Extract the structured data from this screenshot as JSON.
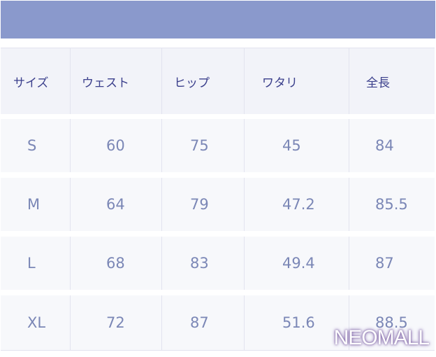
{
  "table": {
    "headers": [
      "サイズ",
      "ウェスト",
      "ヒップ",
      "ワタリ",
      "全長"
    ],
    "rows": [
      [
        "S",
        "60",
        "75",
        "45",
        "84"
      ],
      [
        "M",
        "64",
        "79",
        "47.2",
        "85.5"
      ],
      [
        "L",
        "68",
        "83",
        "49.4",
        "87"
      ],
      [
        "XL",
        "72",
        "87",
        "51.6",
        "88.5"
      ]
    ]
  },
  "watermark": "NEOMALL",
  "colors": {
    "band": "#8a99cc",
    "header_text": "#3b3f8c",
    "value_text": "#7b87b6"
  }
}
